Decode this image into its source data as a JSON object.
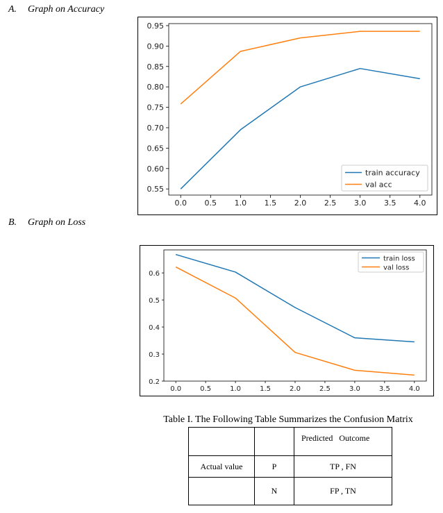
{
  "sections": {
    "a": {
      "number": "A.",
      "title": "Graph on Accuracy"
    },
    "b": {
      "number": "B.",
      "title": "Graph on Loss"
    }
  },
  "chart_data": [
    {
      "type": "line",
      "x": [
        0.0,
        1.0,
        2.0,
        3.0,
        4.0
      ],
      "xlim": [
        -0.2,
        4.2
      ],
      "ylim": [
        0.535,
        0.955
      ],
      "xticks": [
        "0.0",
        "0.5",
        "1.0",
        "1.5",
        "2.0",
        "2.5",
        "3.0",
        "3.5",
        "4.0"
      ],
      "yticks": [
        "0.55",
        "0.60",
        "0.65",
        "0.70",
        "0.75",
        "0.80",
        "0.85",
        "0.90",
        "0.95"
      ],
      "legend_position": "lower-right",
      "series": [
        {
          "name": "train accuracy",
          "color": "#1f77b4",
          "values": [
            0.55,
            0.695,
            0.8,
            0.845,
            0.82
          ]
        },
        {
          "name": "val acc",
          "color": "#ff7f0e",
          "values": [
            0.758,
            0.887,
            0.92,
            0.936,
            0.936
          ]
        }
      ]
    },
    {
      "type": "line",
      "x": [
        0.0,
        1.0,
        2.0,
        3.0,
        4.0
      ],
      "xlim": [
        -0.2,
        4.2
      ],
      "ylim": [
        0.2,
        0.685
      ],
      "xticks": [
        "0.0",
        "0.5",
        "1.0",
        "1.5",
        "2.0",
        "2.5",
        "3.0",
        "3.5",
        "4.0"
      ],
      "yticks": [
        "0.2",
        "0.3",
        "0.4",
        "0.5",
        "0.6"
      ],
      "legend_position": "upper-right",
      "series": [
        {
          "name": "train loss",
          "color": "#1f77b4",
          "values": [
            0.668,
            0.603,
            0.472,
            0.36,
            0.345
          ]
        },
        {
          "name": "val loss",
          "color": "#ff7f0e",
          "values": [
            0.622,
            0.507,
            0.306,
            0.24,
            0.222
          ]
        }
      ]
    }
  ],
  "table": {
    "caption": "Table I. The Following Table Summarizes the Confusion Matrix",
    "rows": [
      [
        "",
        "",
        "Predicted   Outcome"
      ],
      [
        "Actual value",
        "P",
        "TP , FN"
      ],
      [
        "",
        "N",
        "FP , TN"
      ]
    ]
  }
}
